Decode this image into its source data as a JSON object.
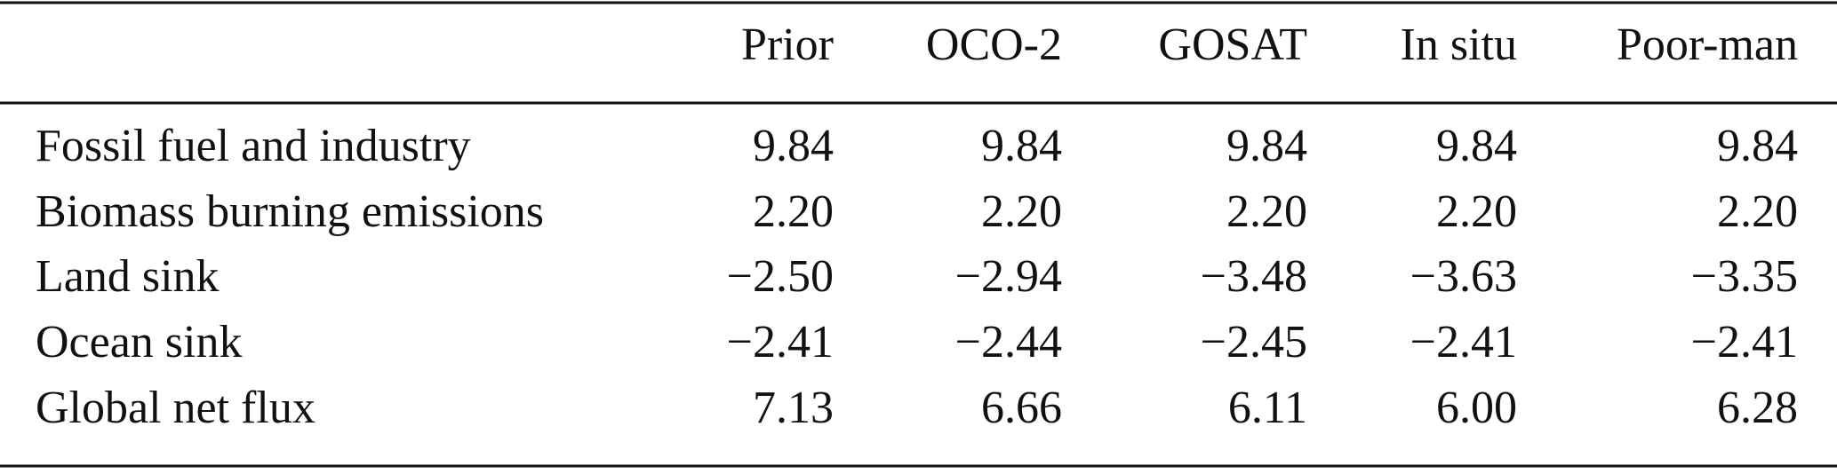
{
  "table": {
    "header": [
      "",
      "Prior",
      "OCO-2",
      "GOSAT",
      "In situ",
      "Poor-man"
    ],
    "rows": [
      [
        "Fossil fuel and industry",
        "9.84",
        "9.84",
        "9.84",
        "9.84",
        "9.84"
      ],
      [
        "Biomass burning emissions",
        "2.20",
        "2.20",
        "2.20",
        "2.20",
        "2.20"
      ],
      [
        "Land sink",
        "−2.50",
        "−2.94",
        "−3.48",
        "−3.63",
        "−3.35"
      ],
      [
        "Ocean sink",
        "−2.41",
        "−2.44",
        "−2.45",
        "−2.41",
        "−2.41"
      ],
      [
        "Global net flux",
        "7.13",
        "6.66",
        "6.11",
        "6.00",
        "6.28"
      ]
    ]
  }
}
